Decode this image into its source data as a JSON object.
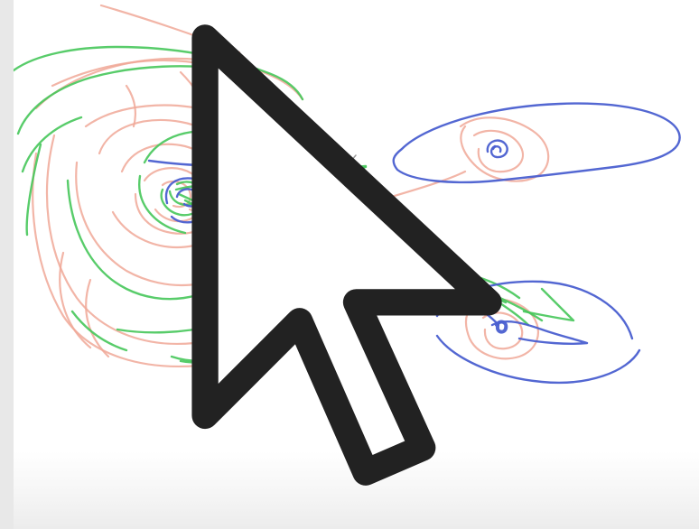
{
  "canvas": {
    "background": "#ffffff"
  },
  "ink_colors": {
    "red": "#f0a898",
    "green": "#46c65a",
    "blue": "#4a5fd0",
    "pencil": "#9a9a9a"
  },
  "cursor": {
    "icon": "mouse-pointer-icon"
  }
}
